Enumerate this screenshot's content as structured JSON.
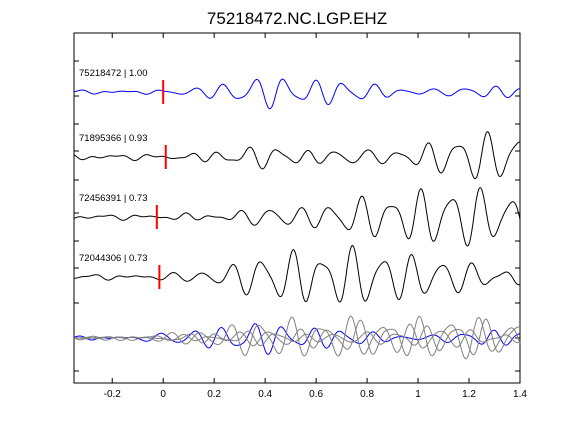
{
  "chart_data": {
    "type": "line",
    "title": "75218472.NC.LGP.EHZ",
    "xlabel": "",
    "ylabel": "",
    "xlim": [
      -0.35,
      1.4
    ],
    "xticks": [
      -0.2,
      0,
      0.2,
      0.4,
      0.6,
      0.8,
      1,
      1.2,
      1.4
    ],
    "xtick_labels": [
      "-0.2",
      "0",
      "0.2",
      "0.4",
      "0.6",
      "0.8",
      "1",
      "1.2",
      "1.4"
    ],
    "grid": false,
    "series": [
      {
        "name": "75218472 | 1.00",
        "color": "#0000ff",
        "pick_time": 0.0,
        "pick_color": "#ff0000",
        "seed": 1.3
      },
      {
        "name": "71895366 | 0.93",
        "color": "#000000",
        "pick_time": 0.01,
        "pick_color": "#ff0000",
        "seed": 2.7
      },
      {
        "name": "72456391 | 0.73",
        "color": "#000000",
        "pick_time": -0.025,
        "pick_color": "#ff0000",
        "seed": 4.1
      },
      {
        "name": "72044306 | 0.73",
        "color": "#000000",
        "pick_time": -0.015,
        "pick_color": "#ff0000",
        "seed": 5.9
      }
    ],
    "stack": {
      "traces_color": "#808080",
      "reference_color": "#0000ff"
    }
  }
}
